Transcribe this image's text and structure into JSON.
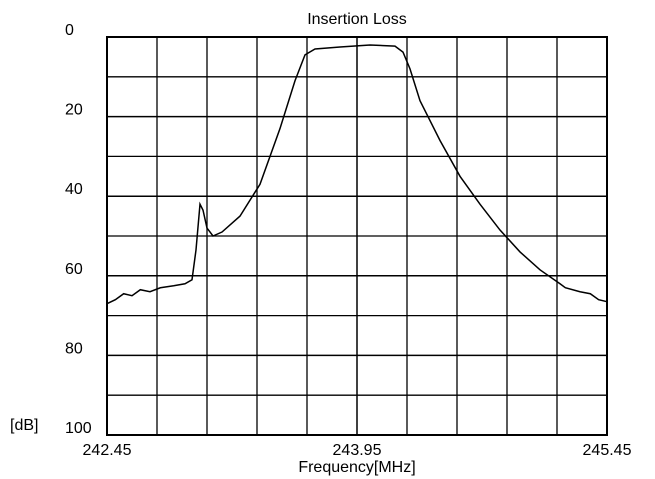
{
  "chart_data": {
    "type": "line",
    "title": "Insertion Loss",
    "xlabel": "Frequency[MHz]",
    "ylabel": "[dB]",
    "x": [
      242.45,
      242.5,
      242.55,
      242.6,
      242.65,
      242.708,
      242.77,
      242.85,
      242.918,
      242.96,
      242.984,
      243.008,
      243.026,
      243.05,
      243.086,
      243.14,
      243.248,
      243.368,
      243.488,
      243.578,
      243.638,
      243.698,
      243.848,
      244.028,
      244.178,
      244.226,
      244.268,
      244.328,
      244.448,
      244.568,
      244.688,
      244.808,
      244.928,
      245.048,
      245.168,
      245.2,
      245.288,
      245.35,
      245.4,
      245.45
    ],
    "values": [
      67,
      66,
      64.5,
      65,
      63.5,
      64,
      63,
      62.5,
      62,
      61,
      53.5,
      42,
      43.5,
      48,
      50,
      49,
      45,
      37,
      23,
      11,
      4.5,
      3,
      2.5,
      2,
      2.3,
      3.8,
      8,
      16,
      26,
      35,
      42,
      48.5,
      54,
      58.5,
      62,
      63,
      64,
      64.5,
      66,
      66.5
    ],
    "color": "#000000",
    "xlim": [
      242.45,
      245.45
    ],
    "xticks": [
      242.45,
      243.95,
      245.45
    ],
    "xgrid_minor": [
      242.75,
      243.05,
      243.35,
      243.65,
      244.25,
      244.55,
      244.85,
      245.15
    ],
    "ylim": [
      0,
      100
    ],
    "yticks": [
      0,
      20,
      40,
      60,
      80,
      100
    ],
    "ygrid_minor": [
      10,
      30,
      50,
      70,
      90
    ],
    "invert_y": true,
    "grid": true
  }
}
